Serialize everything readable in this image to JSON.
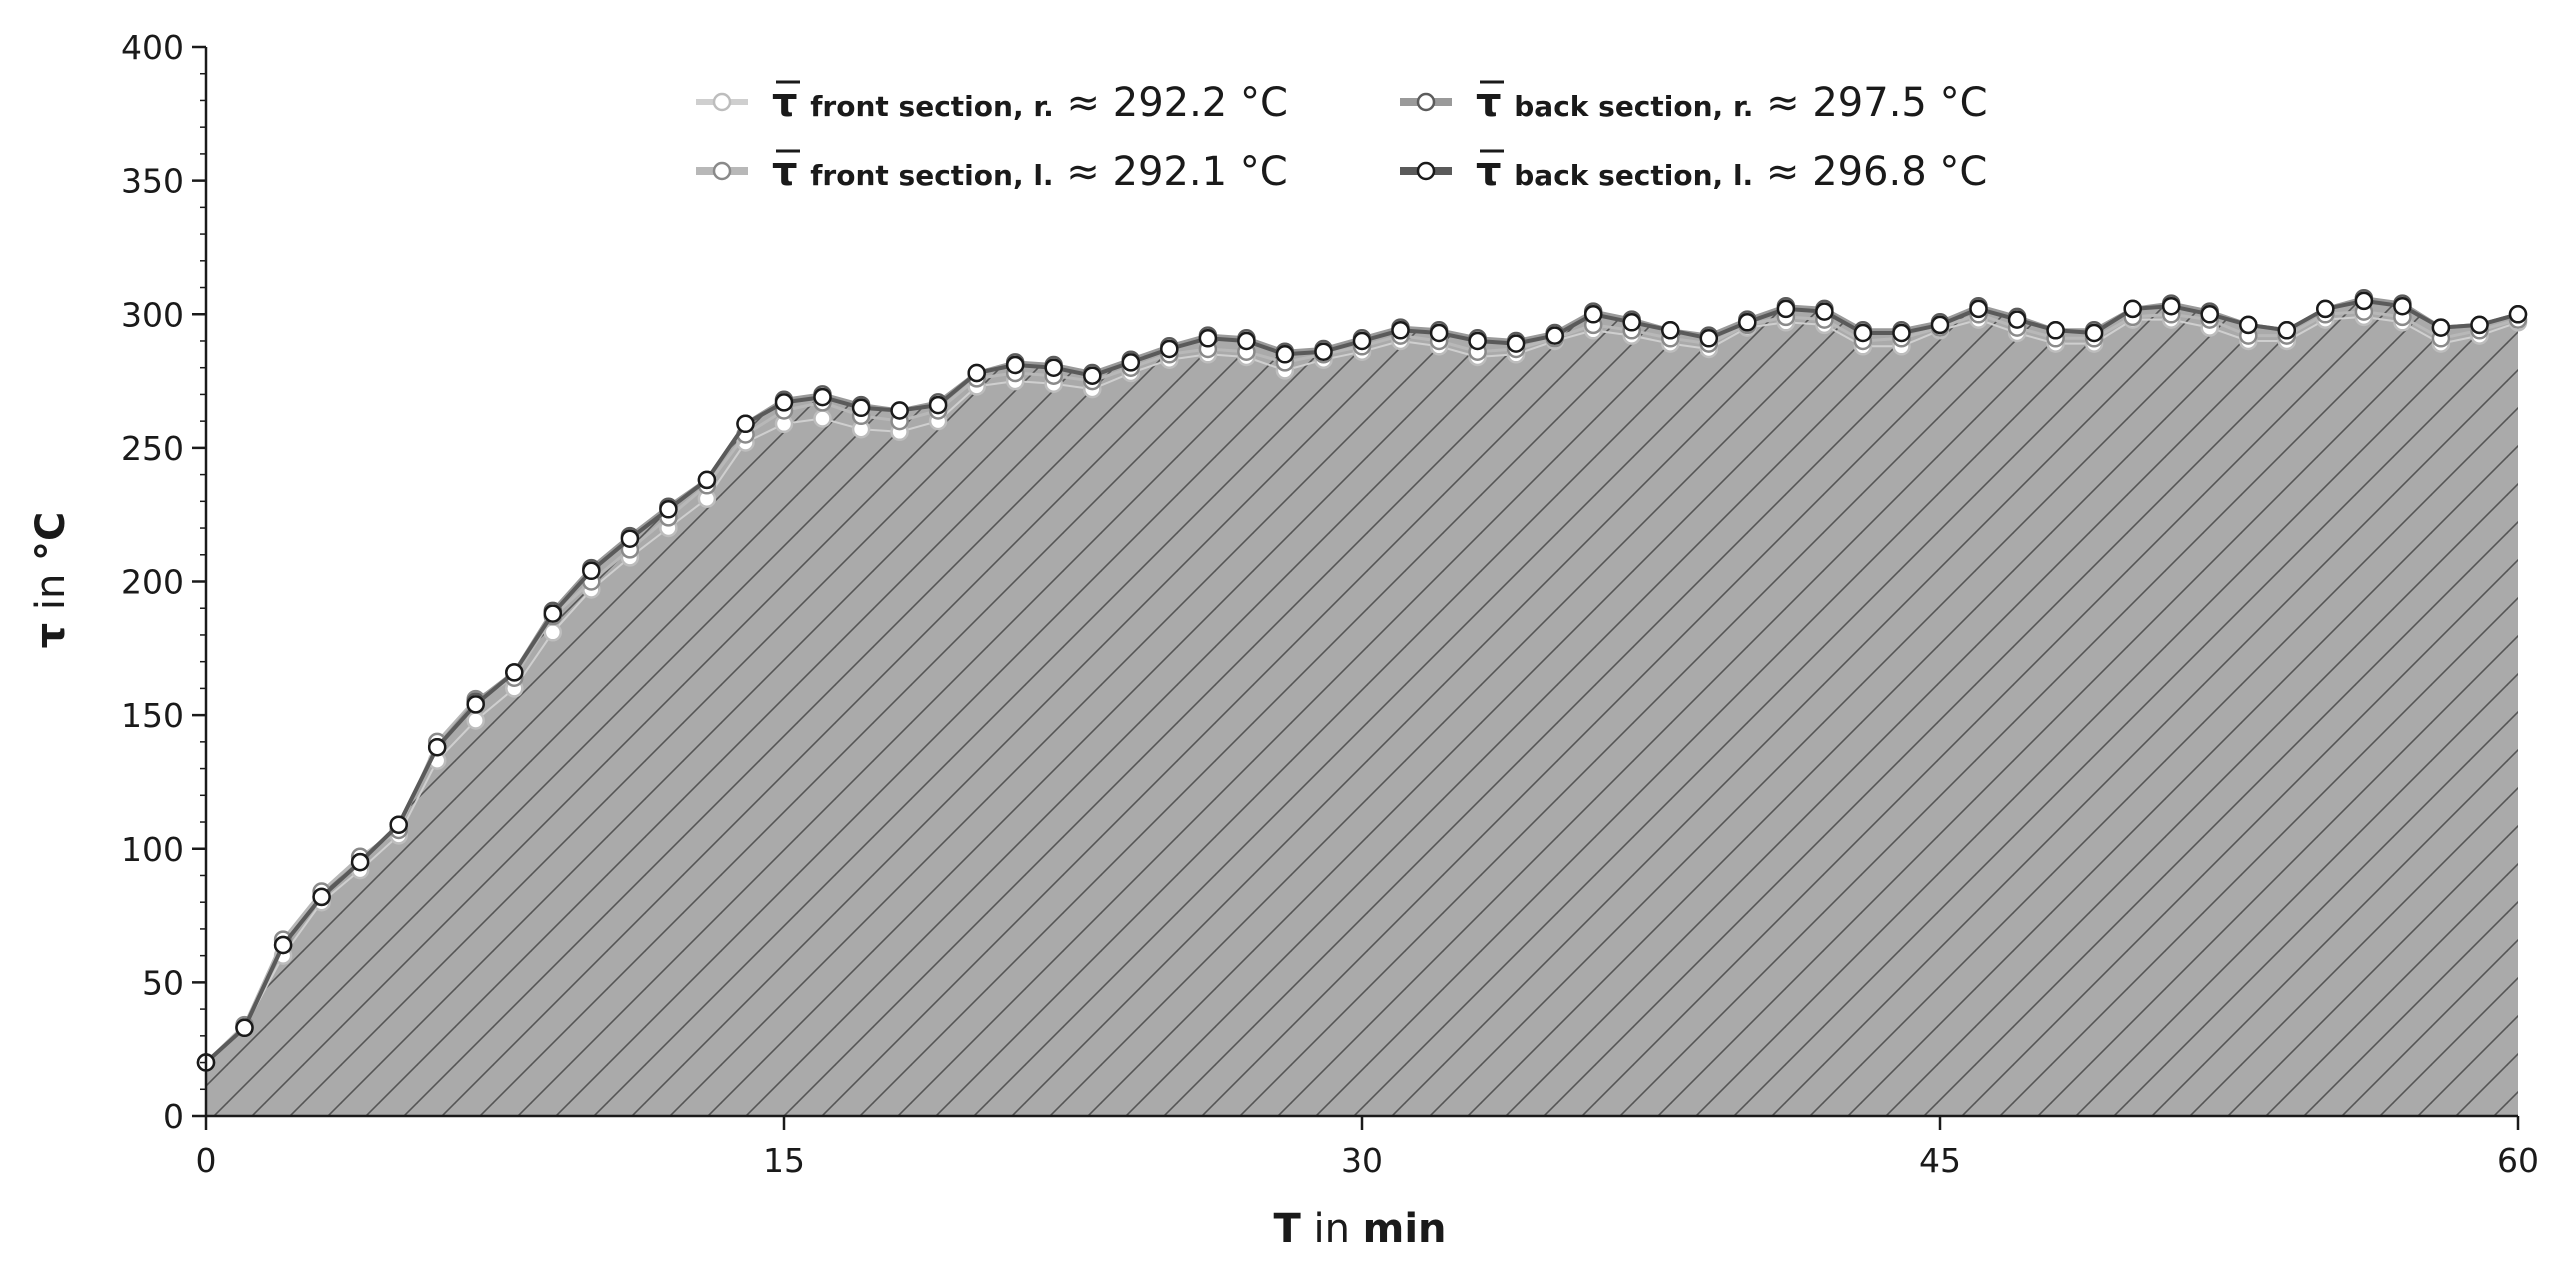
{
  "chart_data": {
    "type": "line",
    "title": "",
    "xlabel": {
      "symbol": "T",
      "middle": " in ",
      "unit": "min"
    },
    "ylabel": {
      "symbol": "τ",
      "middle": " in ",
      "unit": "°C"
    },
    "xlim": [
      0,
      60
    ],
    "ylim": [
      0,
      400
    ],
    "x_ticks": [
      0,
      15,
      30,
      45,
      60
    ],
    "y_ticks": [
      0,
      50,
      100,
      150,
      200,
      250,
      300,
      350,
      400
    ],
    "y_minor_step": 10,
    "grid": false,
    "area_fill": "hatched",
    "legend_position": "top-center",
    "x": [
      0,
      1,
      2,
      3,
      4,
      5,
      6,
      7,
      8,
      9,
      10,
      11,
      12,
      13,
      14,
      15,
      16,
      17,
      18,
      19,
      20,
      21,
      22,
      23,
      24,
      25,
      26,
      27,
      28,
      29,
      30,
      31,
      32,
      33,
      34,
      35,
      36,
      37,
      38,
      39,
      40,
      41,
      42,
      43,
      44,
      45,
      46,
      47,
      48,
      49,
      50,
      51,
      52,
      53,
      54,
      55,
      56,
      57,
      58,
      59,
      60
    ],
    "series": [
      {
        "legend_symbol": "τ",
        "legend_sub": "front section,  r.",
        "legend_value": " ≈ 292.2 °C",
        "color": "#cfcfcf",
        "line_width": 2,
        "marker_stroke": "#bdbdbd",
        "values": [
          20,
          33,
          60,
          80,
          92,
          105,
          133,
          148,
          160,
          181,
          197,
          209,
          220,
          231,
          252,
          259,
          261,
          257,
          256,
          260,
          273,
          275,
          274,
          272,
          278,
          283,
          285,
          284,
          279,
          283,
          286,
          290,
          288,
          284,
          285,
          290,
          294,
          292,
          289,
          287,
          295,
          297,
          296,
          288,
          288,
          294,
          298,
          293,
          289,
          289,
          298,
          298,
          295,
          290,
          290,
          298,
          299,
          297,
          289,
          292,
          297
        ]
      },
      {
        "legend_symbol": "τ",
        "legend_sub": "front section,  l.",
        "legend_value": " ≈ 292.1 °C",
        "color": "#b8b8b8",
        "line_width": 3,
        "marker_stroke": "#8a8a8a",
        "values": [
          20,
          34,
          66,
          84,
          97,
          107,
          140,
          156,
          164,
          187,
          200,
          212,
          224,
          236,
          255,
          264,
          267,
          262,
          260,
          264,
          276,
          278,
          277,
          275,
          280,
          285,
          287,
          286,
          282,
          285,
          288,
          292,
          290,
          286,
          287,
          291,
          296,
          294,
          291,
          289,
          296,
          299,
          298,
          290,
          291,
          295,
          300,
          295,
          291,
          291,
          299,
          300,
          298,
          292,
          292,
          300,
          301,
          299,
          291,
          294,
          298
        ]
      },
      {
        "legend_symbol": "τ",
        "legend_sub": "back section,  r.",
        "legend_value": " ≈ 297.5 °C",
        "color": "#9a9a9a",
        "line_width": 4,
        "marker_stroke": "#5c5c5c",
        "values": [
          20,
          33,
          64,
          82,
          95,
          109,
          138,
          155,
          166,
          189,
          205,
          217,
          228,
          238,
          259,
          268,
          270,
          266,
          264,
          267,
          278,
          282,
          281,
          278,
          283,
          288,
          292,
          291,
          286,
          287,
          291,
          295,
          294,
          291,
          290,
          293,
          301,
          298,
          294,
          292,
          298,
          303,
          302,
          294,
          294,
          297,
          303,
          299,
          294,
          294,
          302,
          304,
          301,
          296,
          294,
          302,
          306,
          304,
          295,
          296,
          300
        ]
      },
      {
        "legend_symbol": "τ",
        "legend_sub": "back section,  l.",
        "legend_value": " ≈ 296.8 °C",
        "color": "#5a5a5a",
        "line_width": 4,
        "marker_stroke": "#1a1a1a",
        "values": [
          20,
          33,
          64,
          82,
          95,
          109,
          138,
          154,
          166,
          188,
          204,
          216,
          227,
          238,
          259,
          267,
          269,
          265,
          264,
          266,
          278,
          281,
          280,
          277,
          282,
          287,
          291,
          290,
          285,
          286,
          290,
          294,
          293,
          290,
          289,
          292,
          300,
          297,
          294,
          291,
          297,
          302,
          301,
          293,
          293,
          296,
          302,
          298,
          294,
          293,
          302,
          303,
          300,
          296,
          294,
          302,
          305,
          303,
          295,
          296,
          300
        ]
      }
    ]
  }
}
